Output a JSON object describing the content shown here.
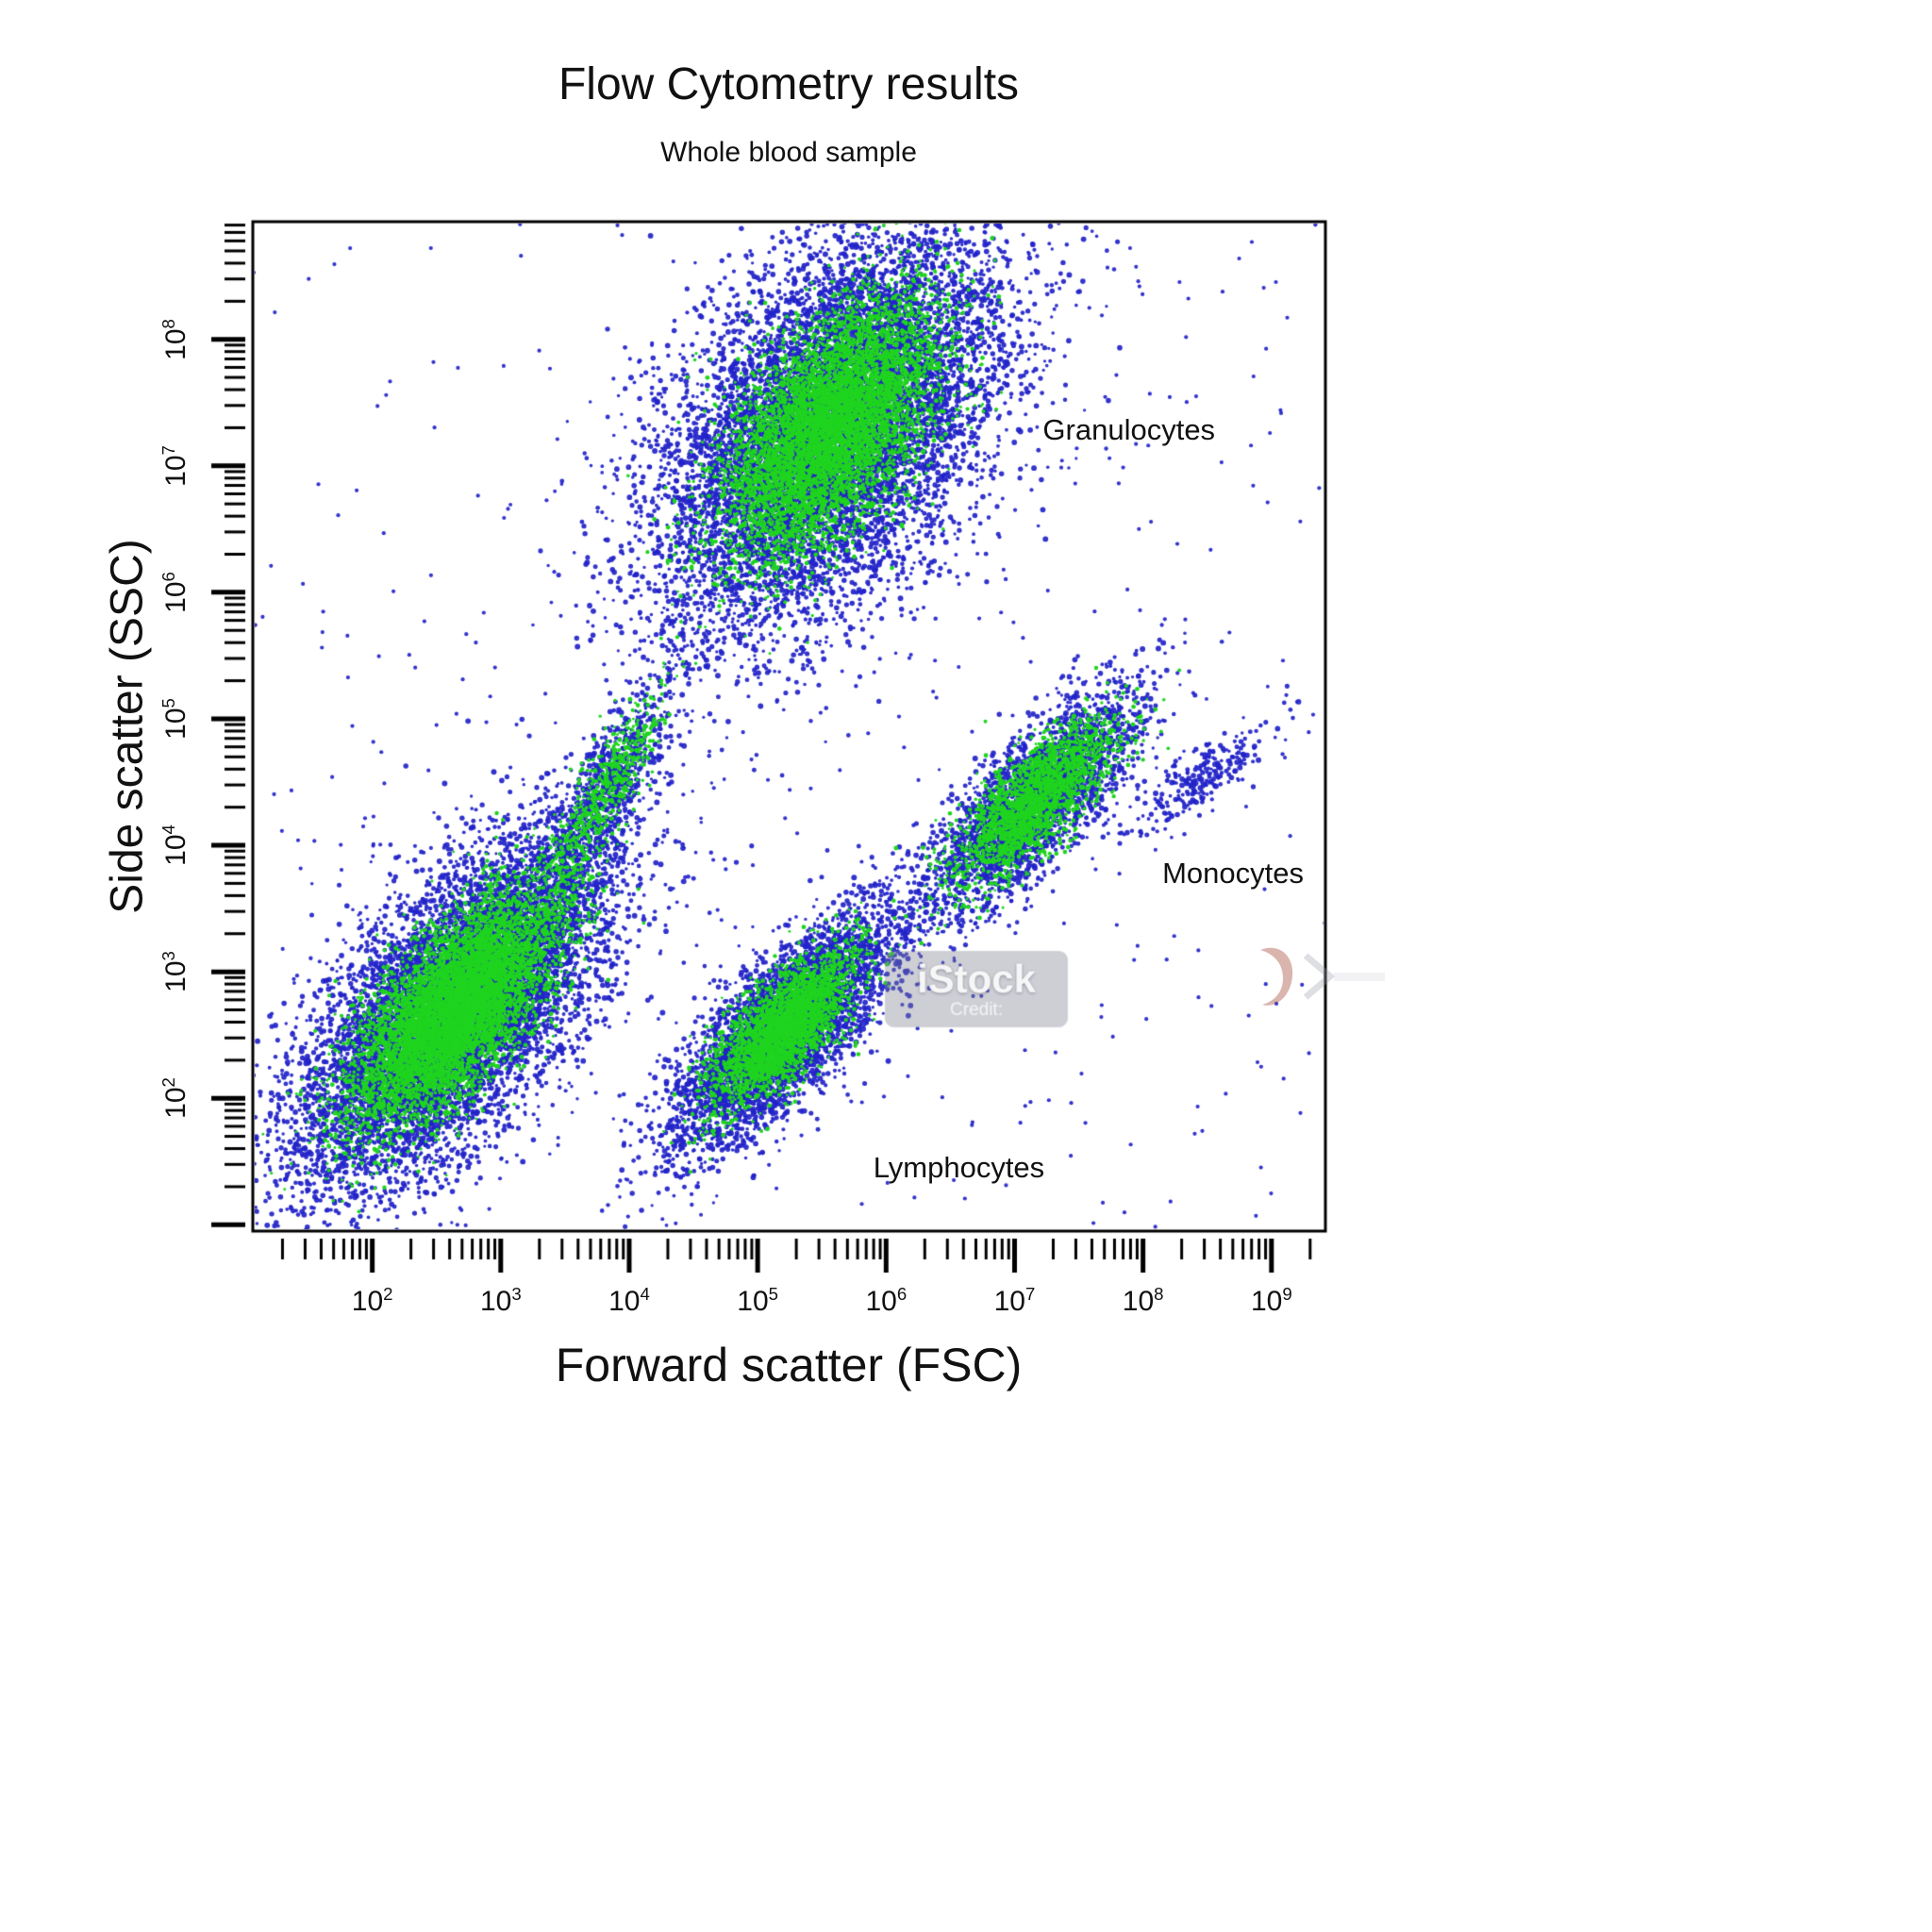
{
  "chart_data": {
    "type": "scatter",
    "title": "Flow Cytometry results",
    "subtitle": "Whole blood sample",
    "xlabel": "Forward scatter (FSC)",
    "ylabel": "Side scatter (SSC)",
    "x_scale": "log",
    "y_scale": "log",
    "tick_base": "10",
    "x_tick_exponents": [
      2,
      3,
      4,
      5,
      6,
      7,
      8,
      9
    ],
    "y_tick_exponents": [
      2,
      3,
      4,
      5,
      6,
      7,
      8
    ],
    "xlim_log": [
      1.07,
      9.42
    ],
    "ylim_log": [
      0.95,
      8.93
    ],
    "grid": false,
    "legend": "none",
    "point_colors": {
      "outer": "#2223c9",
      "core": "#1fd41f"
    },
    "clusters": [
      {
        "name": "debris-erythrocytes",
        "center": [
          2.65,
          2.72
        ],
        "angle_deg": 51,
        "blue": {
          "n": 9000,
          "sigma_major": 0.85,
          "sigma_minor": 0.38
        },
        "green": {
          "n": 7000,
          "sigma_major": 0.55,
          "sigma_minor": 0.24
        }
      },
      {
        "name": "debris-upper-arm",
        "center": [
          3.8,
          4.4
        ],
        "angle_deg": 62,
        "blue": {
          "n": 800,
          "sigma_major": 0.5,
          "sigma_minor": 0.13
        },
        "green": {
          "n": 600,
          "sigma_major": 0.4,
          "sigma_minor": 0.1
        }
      },
      {
        "name": "lymphocytes",
        "center": [
          5.2,
          2.55
        ],
        "angle_deg": 48,
        "blue": {
          "n": 4500,
          "sigma_major": 0.6,
          "sigma_minor": 0.22
        },
        "green": {
          "n": 3000,
          "sigma_major": 0.38,
          "sigma_minor": 0.15
        }
      },
      {
        "name": "monocytes",
        "center": [
          7.15,
          4.35
        ],
        "angle_deg": 47,
        "blue": {
          "n": 3000,
          "sigma_major": 0.55,
          "sigma_minor": 0.2
        },
        "green": {
          "n": 2200,
          "sigma_major": 0.42,
          "sigma_minor": 0.15
        }
      },
      {
        "name": "monocytes-right-tail",
        "center": [
          8.45,
          4.55
        ],
        "angle_deg": 40,
        "blue": {
          "n": 260,
          "sigma_major": 0.38,
          "sigma_minor": 0.12
        },
        "green": null
      },
      {
        "name": "granulocytes",
        "center": [
          5.55,
          7.3
        ],
        "angle_deg": 55,
        "blue": {
          "n": 9500,
          "sigma_major": 0.9,
          "sigma_minor": 0.52
        },
        "green": {
          "n": 6500,
          "sigma_major": 0.58,
          "sigma_minor": 0.3
        }
      }
    ],
    "noise": {
      "n": 420
    },
    "annotations": [
      {
        "text": "Granulocytes",
        "log_x": 7.22,
        "log_y": 7.28
      },
      {
        "text": "Monocytes",
        "log_x": 8.15,
        "log_y": 3.78
      },
      {
        "text": "Lymphocytes",
        "log_x": 5.9,
        "log_y": 1.45
      }
    ]
  },
  "watermark": {
    "brand": "iStock",
    "credit": "Credit:"
  }
}
